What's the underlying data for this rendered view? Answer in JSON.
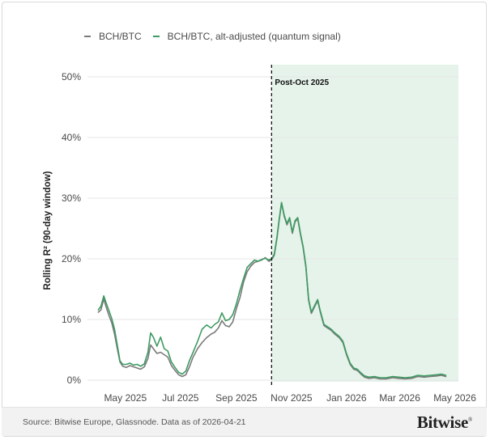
{
  "chart_data": {
    "type": "line",
    "ylabel": "Rolling R² (90-day window)",
    "ylim": [
      0,
      52
    ],
    "yticks": [
      0,
      10,
      20,
      30,
      40,
      50
    ],
    "ytick_labels": [
      "0%",
      "10%",
      "20%",
      "30%",
      "40%",
      "50%"
    ],
    "xlim": [
      "2025-03-20",
      "2026-05-05"
    ],
    "xticks": [
      {
        "date": "2025-05-01",
        "label": "May 2025"
      },
      {
        "date": "2025-07-01",
        "label": "Jul 2025"
      },
      {
        "date": "2025-09-01",
        "label": "Sep 2025"
      },
      {
        "date": "2025-11-01",
        "label": "Nov 2025"
      },
      {
        "date": "2026-01-01",
        "label": "Jan 2026"
      },
      {
        "date": "2026-03-01",
        "label": "Mar 2026"
      },
      {
        "date": "2026-05-01",
        "label": "May 2026"
      }
    ],
    "grid": true,
    "legend": "top-left",
    "annotation": {
      "label": "Post-Oct 2025",
      "date": "2025-10-10",
      "shade_until": "2026-05-05"
    },
    "series": [
      {
        "name": "BCH/BTC",
        "color": "#7a7a7a",
        "points": [
          [
            "2025-04-01",
            11.2
          ],
          [
            "2025-04-04",
            11.6
          ],
          [
            "2025-04-07",
            13.4
          ],
          [
            "2025-04-10",
            11.9
          ],
          [
            "2025-04-13",
            10.6
          ],
          [
            "2025-04-16",
            9.4
          ],
          [
            "2025-04-19",
            7.6
          ],
          [
            "2025-04-22",
            5.2
          ],
          [
            "2025-04-25",
            3.0
          ],
          [
            "2025-04-28",
            2.3
          ],
          [
            "2025-05-02",
            2.1
          ],
          [
            "2025-05-06",
            2.4
          ],
          [
            "2025-05-10",
            2.2
          ],
          [
            "2025-05-14",
            2.0
          ],
          [
            "2025-05-18",
            1.8
          ],
          [
            "2025-05-22",
            2.2
          ],
          [
            "2025-05-26",
            3.6
          ],
          [
            "2025-05-29",
            5.8
          ],
          [
            "2025-06-01",
            5.2
          ],
          [
            "2025-06-05",
            4.4
          ],
          [
            "2025-06-09",
            4.6
          ],
          [
            "2025-06-13",
            4.2
          ],
          [
            "2025-06-17",
            3.8
          ],
          [
            "2025-06-21",
            2.4
          ],
          [
            "2025-06-25",
            1.6
          ],
          [
            "2025-06-29",
            0.9
          ],
          [
            "2025-07-03",
            0.6
          ],
          [
            "2025-07-07",
            0.9
          ],
          [
            "2025-07-11",
            2.2
          ],
          [
            "2025-07-15",
            3.8
          ],
          [
            "2025-07-20",
            5.2
          ],
          [
            "2025-07-25",
            6.2
          ],
          [
            "2025-07-30",
            7.0
          ],
          [
            "2025-08-04",
            7.6
          ],
          [
            "2025-08-08",
            7.9
          ],
          [
            "2025-08-12",
            8.6
          ],
          [
            "2025-08-16",
            9.8
          ],
          [
            "2025-08-20",
            9.0
          ],
          [
            "2025-08-24",
            8.8
          ],
          [
            "2025-08-28",
            9.6
          ],
          [
            "2025-09-01",
            11.8
          ],
          [
            "2025-09-05",
            13.6
          ],
          [
            "2025-09-09",
            16.2
          ],
          [
            "2025-09-13",
            17.9
          ],
          [
            "2025-09-17",
            18.8
          ],
          [
            "2025-09-21",
            19.4
          ],
          [
            "2025-09-25",
            19.6
          ],
          [
            "2025-09-29",
            19.8
          ],
          [
            "2025-10-03",
            20.2
          ],
          [
            "2025-10-07",
            19.6
          ],
          [
            "2025-10-10",
            19.8
          ],
          [
            "2025-10-13",
            20.6
          ],
          [
            "2025-10-16",
            23.4
          ],
          [
            "2025-10-18",
            25.8
          ],
          [
            "2025-10-21",
            29.2
          ],
          [
            "2025-10-24",
            27.0
          ],
          [
            "2025-10-27",
            25.6
          ],
          [
            "2025-10-30",
            26.6
          ],
          [
            "2025-11-02",
            24.2
          ],
          [
            "2025-11-05",
            26.1
          ],
          [
            "2025-11-08",
            26.6
          ],
          [
            "2025-11-11",
            24.0
          ],
          [
            "2025-11-14",
            21.8
          ],
          [
            "2025-11-17",
            18.6
          ],
          [
            "2025-11-20",
            13.2
          ],
          [
            "2025-11-23",
            11.0
          ],
          [
            "2025-11-27",
            12.2
          ],
          [
            "2025-11-30",
            13.1
          ],
          [
            "2025-12-03",
            11.2
          ],
          [
            "2025-12-07",
            9.0
          ],
          [
            "2025-12-11",
            8.6
          ],
          [
            "2025-12-15",
            8.2
          ],
          [
            "2025-12-19",
            7.6
          ],
          [
            "2025-12-24",
            7.0
          ],
          [
            "2025-12-28",
            6.2
          ],
          [
            "2026-01-01",
            4.2
          ],
          [
            "2026-01-05",
            2.6
          ],
          [
            "2026-01-09",
            1.8
          ],
          [
            "2026-01-13",
            1.6
          ],
          [
            "2026-01-17",
            1.0
          ],
          [
            "2026-01-21",
            0.5
          ],
          [
            "2026-01-26",
            0.3
          ],
          [
            "2026-02-01",
            0.4
          ],
          [
            "2026-02-07",
            0.2
          ],
          [
            "2026-02-14",
            0.2
          ],
          [
            "2026-02-21",
            0.4
          ],
          [
            "2026-02-28",
            0.3
          ],
          [
            "2026-03-07",
            0.2
          ],
          [
            "2026-03-14",
            0.3
          ],
          [
            "2026-03-21",
            0.6
          ],
          [
            "2026-03-28",
            0.5
          ],
          [
            "2026-04-04",
            0.6
          ],
          [
            "2026-04-11",
            0.7
          ],
          [
            "2026-04-16",
            0.8
          ],
          [
            "2026-04-21",
            0.6
          ]
        ]
      },
      {
        "name": "BCH/BTC, alt-adjusted (quantum signal)",
        "color": "#3f9a63",
        "points": [
          [
            "2025-04-01",
            11.6
          ],
          [
            "2025-04-04",
            12.2
          ],
          [
            "2025-04-07",
            13.9
          ],
          [
            "2025-04-10",
            12.6
          ],
          [
            "2025-04-13",
            11.4
          ],
          [
            "2025-04-16",
            10.1
          ],
          [
            "2025-04-19",
            8.4
          ],
          [
            "2025-04-22",
            5.8
          ],
          [
            "2025-04-25",
            3.2
          ],
          [
            "2025-04-28",
            2.6
          ],
          [
            "2025-05-02",
            2.6
          ],
          [
            "2025-05-06",
            2.8
          ],
          [
            "2025-05-10",
            2.5
          ],
          [
            "2025-05-14",
            2.6
          ],
          [
            "2025-05-18",
            2.3
          ],
          [
            "2025-05-22",
            2.7
          ],
          [
            "2025-05-26",
            4.6
          ],
          [
            "2025-05-29",
            7.8
          ],
          [
            "2025-06-01",
            7.1
          ],
          [
            "2025-06-05",
            5.6
          ],
          [
            "2025-06-09",
            7.1
          ],
          [
            "2025-06-13",
            5.2
          ],
          [
            "2025-06-17",
            4.8
          ],
          [
            "2025-06-21",
            3.0
          ],
          [
            "2025-06-25",
            2.1
          ],
          [
            "2025-06-29",
            1.3
          ],
          [
            "2025-07-03",
            1.0
          ],
          [
            "2025-07-07",
            1.5
          ],
          [
            "2025-07-11",
            3.2
          ],
          [
            "2025-07-15",
            4.6
          ],
          [
            "2025-07-20",
            6.4
          ],
          [
            "2025-07-25",
            8.4
          ],
          [
            "2025-07-30",
            9.1
          ],
          [
            "2025-08-04",
            8.6
          ],
          [
            "2025-08-08",
            9.2
          ],
          [
            "2025-08-12",
            9.6
          ],
          [
            "2025-08-16",
            11.1
          ],
          [
            "2025-08-20",
            9.8
          ],
          [
            "2025-08-24",
            10.0
          ],
          [
            "2025-08-28",
            10.8
          ],
          [
            "2025-09-01",
            12.6
          ],
          [
            "2025-09-05",
            14.8
          ],
          [
            "2025-09-09",
            16.8
          ],
          [
            "2025-09-13",
            18.6
          ],
          [
            "2025-09-17",
            19.2
          ],
          [
            "2025-09-21",
            19.8
          ],
          [
            "2025-09-25",
            19.6
          ],
          [
            "2025-09-29",
            19.9
          ],
          [
            "2025-10-03",
            20.1
          ],
          [
            "2025-10-07",
            19.8
          ],
          [
            "2025-10-10",
            20.0
          ],
          [
            "2025-10-13",
            20.8
          ],
          [
            "2025-10-16",
            23.6
          ],
          [
            "2025-10-18",
            26.0
          ],
          [
            "2025-10-21",
            29.3
          ],
          [
            "2025-10-24",
            27.2
          ],
          [
            "2025-10-27",
            25.8
          ],
          [
            "2025-10-30",
            26.8
          ],
          [
            "2025-11-02",
            24.4
          ],
          [
            "2025-11-05",
            26.3
          ],
          [
            "2025-11-08",
            26.8
          ],
          [
            "2025-11-11",
            24.2
          ],
          [
            "2025-11-14",
            22.0
          ],
          [
            "2025-11-17",
            18.8
          ],
          [
            "2025-11-20",
            13.4
          ],
          [
            "2025-11-23",
            11.2
          ],
          [
            "2025-11-27",
            12.4
          ],
          [
            "2025-11-30",
            13.3
          ],
          [
            "2025-12-03",
            11.4
          ],
          [
            "2025-12-07",
            9.2
          ],
          [
            "2025-12-11",
            8.8
          ],
          [
            "2025-12-15",
            8.4
          ],
          [
            "2025-12-19",
            7.8
          ],
          [
            "2025-12-24",
            7.2
          ],
          [
            "2025-12-28",
            6.4
          ],
          [
            "2026-01-01",
            4.4
          ],
          [
            "2026-01-05",
            2.8
          ],
          [
            "2026-01-09",
            2.0
          ],
          [
            "2026-01-13",
            1.8
          ],
          [
            "2026-01-17",
            1.2
          ],
          [
            "2026-01-21",
            0.7
          ],
          [
            "2026-01-26",
            0.5
          ],
          [
            "2026-02-01",
            0.6
          ],
          [
            "2026-02-07",
            0.4
          ],
          [
            "2026-02-14",
            0.4
          ],
          [
            "2026-02-21",
            0.6
          ],
          [
            "2026-02-28",
            0.5
          ],
          [
            "2026-03-07",
            0.4
          ],
          [
            "2026-03-14",
            0.5
          ],
          [
            "2026-03-21",
            0.8
          ],
          [
            "2026-03-28",
            0.7
          ],
          [
            "2026-04-04",
            0.8
          ],
          [
            "2026-04-11",
            0.9
          ],
          [
            "2026-04-16",
            1.0
          ],
          [
            "2026-04-21",
            0.8
          ]
        ]
      }
    ]
  },
  "footer": {
    "source": "Source: Bitwise Europe, Glassnode. Data as of 2026-04-21",
    "brand": "Bitwise",
    "brand_mark": "®"
  }
}
